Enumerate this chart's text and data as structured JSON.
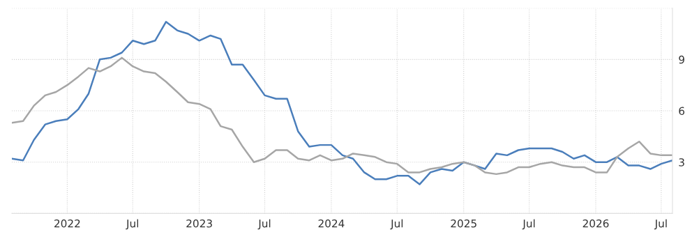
{
  "chart_data": {
    "type": "line",
    "x": [
      "2021-08",
      "2021-09",
      "2021-10",
      "2021-11",
      "2021-12",
      "2022-01",
      "2022-02",
      "2022-03",
      "2022-04",
      "2022-05",
      "2022-06",
      "2022-07",
      "2022-08",
      "2022-09",
      "2022-10",
      "2022-11",
      "2022-12",
      "2023-01",
      "2023-02",
      "2023-03",
      "2023-04",
      "2023-05",
      "2023-06",
      "2023-07",
      "2023-08",
      "2023-09",
      "2023-10",
      "2023-11",
      "2023-12",
      "2024-01",
      "2024-02",
      "2024-03",
      "2024-04",
      "2024-05",
      "2024-06",
      "2024-07",
      "2024-08",
      "2024-09",
      "2024-10",
      "2024-11",
      "2024-12",
      "2025-01",
      "2025-02",
      "2025-03",
      "2025-04",
      "2025-05",
      "2025-06",
      "2025-07",
      "2025-08",
      "2025-09",
      "2025-10",
      "2025-11",
      "2025-12",
      "2026-01",
      "2026-02",
      "2026-03",
      "2026-04",
      "2026-05",
      "2026-06",
      "2026-07",
      "2026-08"
    ],
    "series": [
      {
        "color": "#4a7ebb",
        "values": [
          3.2,
          3.1,
          4.3,
          5.2,
          5.4,
          5.5,
          6.1,
          7.0,
          9.0,
          9.1,
          9.4,
          10.1,
          9.9,
          10.1,
          11.2,
          10.7,
          10.5,
          10.1,
          10.4,
          10.2,
          8.7,
          8.7,
          7.8,
          6.9,
          6.7,
          6.7,
          4.8,
          3.9,
          4.0,
          4.0,
          3.4,
          3.2,
          2.4,
          2.0,
          2.0,
          2.2,
          2.2,
          1.7,
          2.4,
          2.6,
          2.5,
          3.0,
          2.8,
          2.6,
          3.5,
          3.4,
          3.7,
          3.8,
          3.8,
          3.8,
          3.6,
          3.2,
          3.4,
          3.0,
          3.0,
          3.3,
          2.8,
          2.8,
          2.6,
          2.9,
          3.1
        ]
      },
      {
        "color": "#a6a6a6",
        "values": [
          5.3,
          5.4,
          6.3,
          6.9,
          7.1,
          7.5,
          8.0,
          8.5,
          8.3,
          8.6,
          9.1,
          8.6,
          8.3,
          8.2,
          7.7,
          7.1,
          6.5,
          6.4,
          6.1,
          5.1,
          4.9,
          3.9,
          3.0,
          3.2,
          3.7,
          3.7,
          3.2,
          3.1,
          3.4,
          3.1,
          3.2,
          3.5,
          3.4,
          3.3,
          3.0,
          2.9,
          2.4,
          2.4,
          2.6,
          2.7,
          2.9,
          3.0,
          2.8,
          2.4,
          2.3,
          2.4,
          2.7,
          2.7,
          2.9,
          3.0,
          2.8,
          2.7,
          2.7,
          2.4,
          2.4,
          3.3,
          3.8,
          4.2,
          3.5,
          3.4,
          3.4
        ]
      }
    ],
    "xlim": [
      "2021-08",
      "2026-08"
    ],
    "xticks": [
      {
        "value": "2022-01",
        "label": "2022"
      },
      {
        "value": "2022-07",
        "label": "Jul"
      },
      {
        "value": "2023-01",
        "label": "2023"
      },
      {
        "value": "2023-07",
        "label": "Jul"
      },
      {
        "value": "2024-01",
        "label": "2024"
      },
      {
        "value": "2024-07",
        "label": "Jul"
      },
      {
        "value": "2025-01",
        "label": "2025"
      },
      {
        "value": "2025-07",
        "label": "Jul"
      },
      {
        "value": "2026-01",
        "label": "2026"
      },
      {
        "value": "2026-07",
        "label": "Jul"
      }
    ],
    "ylim": [
      0,
      12
    ],
    "yticks": [
      {
        "value": 0,
        "label": null
      },
      3,
      6,
      9,
      {
        "value": 12,
        "label": null
      }
    ],
    "grid": true,
    "legend": false,
    "marker": "none",
    "line_style": "solid"
  }
}
